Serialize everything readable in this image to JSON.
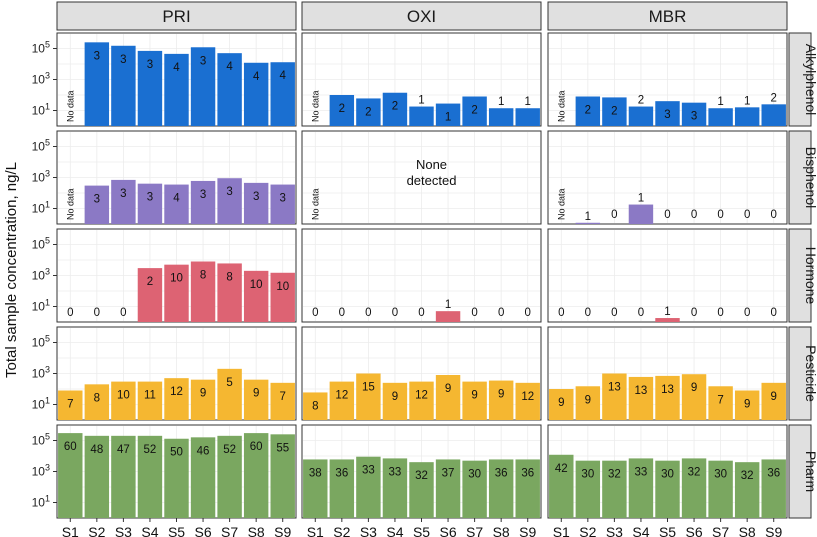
{
  "chart_data": {
    "type": "bar",
    "title": "",
    "xlabel": "",
    "ylabel": "Total sample concentration, ng/L",
    "yscale": "log10",
    "ylim": [
      1,
      1000000
    ],
    "yticks": [
      {
        "value": 10,
        "label": "10",
        "exp": "1"
      },
      {
        "value": 1000,
        "label": "10",
        "exp": "3"
      },
      {
        "value": 100000,
        "label": "10",
        "exp": "5"
      }
    ],
    "categories": [
      "S1",
      "S2",
      "S3",
      "S4",
      "S5",
      "S6",
      "S7",
      "S8",
      "S9"
    ],
    "columns": [
      "PRI",
      "OXI",
      "MBR"
    ],
    "rows": [
      "Alkylphenol",
      "Bisphenol",
      "Hormone",
      "Pesticide",
      "Pharm"
    ],
    "panels": [
      {
        "row": "Alkylphenol",
        "column": "PRI",
        "color": "#1a6fd1",
        "values": [
          null,
          250000,
          150000,
          70000,
          45000,
          120000,
          50000,
          12000,
          13000
        ],
        "counts": [
          "No data",
          "3",
          "3",
          "3",
          "4",
          "3",
          "4",
          "4",
          "4"
        ]
      },
      {
        "row": "Alkylphenol",
        "column": "OXI",
        "color": "#1a6fd1",
        "values": [
          null,
          100,
          60,
          140,
          18,
          28,
          80,
          14,
          14
        ],
        "counts": [
          "No data",
          "2",
          "2",
          "2",
          "1",
          "1",
          "2",
          "1",
          "1"
        ]
      },
      {
        "row": "Alkylphenol",
        "column": "MBR",
        "color": "#1a6fd1",
        "values": [
          null,
          80,
          70,
          18,
          40,
          32,
          14,
          16,
          25
        ],
        "counts": [
          "No data",
          "2",
          "2",
          "2",
          "3",
          "3",
          "1",
          "1",
          "2"
        ]
      },
      {
        "row": "Bisphenol",
        "column": "PRI",
        "color": "#8b79c5",
        "values": [
          null,
          300,
          700,
          400,
          350,
          600,
          900,
          450,
          350
        ],
        "counts": [
          "No data",
          "3",
          "3",
          "3",
          "4",
          "3",
          "3",
          "3",
          "3"
        ]
      },
      {
        "row": "Bisphenol",
        "column": "OXI",
        "color": "#8b79c5",
        "values": [
          null,
          null,
          null,
          null,
          null,
          null,
          null,
          null,
          null
        ],
        "counts": [
          "No data",
          "",
          "",
          "",
          "",
          "",
          "",
          "",
          ""
        ],
        "note": [
          "None",
          "detected"
        ]
      },
      {
        "row": "Bisphenol",
        "column": "MBR",
        "color": "#8b79c5",
        "values": [
          null,
          1.2,
          0,
          18,
          0,
          0,
          0,
          0,
          0
        ],
        "counts": [
          "No data",
          "1",
          "0",
          "1",
          "0",
          "0",
          "0",
          "0",
          "0"
        ]
      },
      {
        "row": "Hormone",
        "column": "PRI",
        "color": "#dd6373",
        "values": [
          0,
          0,
          0,
          3000,
          5000,
          8000,
          6000,
          2000,
          1500
        ],
        "counts": [
          "0",
          "0",
          "0",
          "2",
          "10",
          "8",
          "8",
          "10",
          "10"
        ]
      },
      {
        "row": "Hormone",
        "column": "OXI",
        "color": "#dd6373",
        "values": [
          0,
          0,
          0,
          0,
          0,
          5,
          0,
          0,
          0
        ],
        "counts": [
          "0",
          "0",
          "0",
          "0",
          "0",
          "1",
          "0",
          "0",
          "0"
        ]
      },
      {
        "row": "Hormone",
        "column": "MBR",
        "color": "#dd6373",
        "values": [
          0,
          0,
          0,
          0,
          1.8,
          0,
          0,
          0,
          0
        ],
        "counts": [
          "0",
          "0",
          "0",
          "0",
          "1",
          "0",
          "0",
          "0",
          "0"
        ]
      },
      {
        "row": "Pesticide",
        "column": "PRI",
        "color": "#f5b731",
        "values": [
          80,
          200,
          300,
          300,
          500,
          400,
          2000,
          400,
          250
        ],
        "counts": [
          "7",
          "8",
          "10",
          "11",
          "12",
          "9",
          "5",
          "9",
          "7"
        ]
      },
      {
        "row": "Pesticide",
        "column": "OXI",
        "color": "#f5b731",
        "values": [
          60,
          300,
          1000,
          250,
          300,
          800,
          300,
          350,
          250
        ],
        "counts": [
          "8",
          "12",
          "15",
          "9",
          "12",
          "9",
          "9",
          "9",
          "12"
        ]
      },
      {
        "row": "Pesticide",
        "column": "MBR",
        "color": "#f5b731",
        "values": [
          100,
          150,
          1000,
          600,
          700,
          900,
          150,
          80,
          250
        ],
        "counts": [
          "9",
          "9",
          "13",
          "13",
          "13",
          "9",
          "7",
          "9",
          "9"
        ]
      },
      {
        "row": "Pharm",
        "column": "PRI",
        "color": "#7aa760",
        "values": [
          300000,
          200000,
          200000,
          200000,
          130000,
          160000,
          200000,
          300000,
          250000
        ],
        "counts": [
          "60",
          "48",
          "47",
          "52",
          "50",
          "46",
          "52",
          "60",
          "55"
        ]
      },
      {
        "row": "Pharm",
        "column": "OXI",
        "color": "#7aa760",
        "values": [
          6000,
          6000,
          9000,
          7000,
          4000,
          6000,
          5000,
          6000,
          6000
        ],
        "counts": [
          "38",
          "36",
          "33",
          "33",
          "32",
          "37",
          "30",
          "36",
          "36"
        ]
      },
      {
        "row": "Pharm",
        "column": "MBR",
        "color": "#7aa760",
        "values": [
          12000,
          5000,
          5000,
          7000,
          5000,
          7000,
          5000,
          4000,
          6000
        ],
        "counts": [
          "42",
          "30",
          "32",
          "33",
          "30",
          "32",
          "30",
          "32",
          "36"
        ]
      }
    ]
  }
}
